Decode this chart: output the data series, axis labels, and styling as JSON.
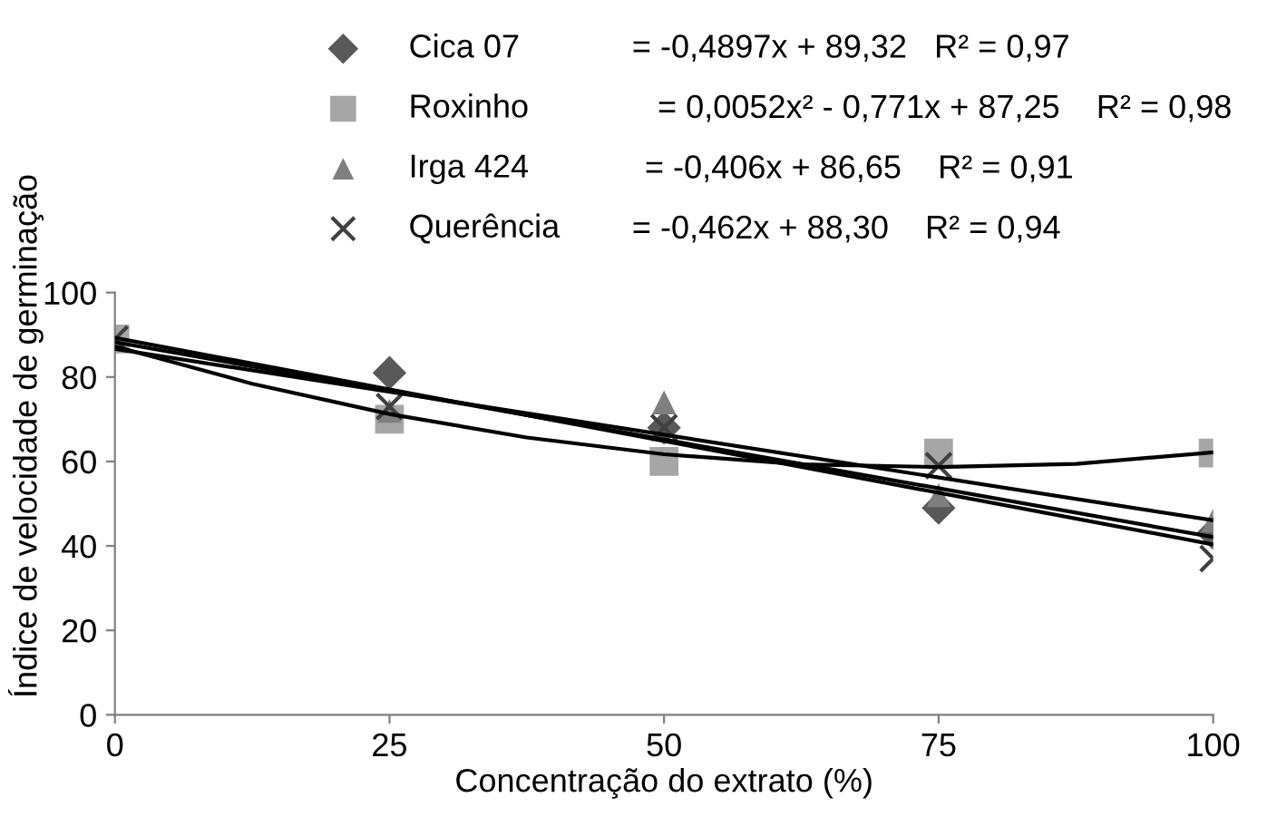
{
  "chart_data": {
    "type": "scatter",
    "xlabel": "Concentração do extrato (%)",
    "ylabel": "Índice de velocidade de germinação",
    "x": [
      0,
      25,
      50,
      75,
      100
    ],
    "series": [
      {
        "name": "Cica 07",
        "color": "#595959",
        "marker": "diamond",
        "values": [
          null,
          81,
          68,
          49,
          43
        ]
      },
      {
        "name": "Roxinho",
        "color": "#a6a6a6",
        "marker": "square",
        "values": [
          89,
          70,
          60,
          62,
          62
        ]
      },
      {
        "name": "Irga 424",
        "color": "#7f7f7f",
        "marker": "triangle",
        "values": [
          null,
          72,
          74,
          52,
          46
        ]
      },
      {
        "name": "Querência",
        "color": "#404040",
        "marker": "cross",
        "values": [
          89,
          73,
          68,
          59,
          37
        ]
      },
      {
        "type": "line",
        "color": "#000000",
        "x": [
          0,
          100
        ],
        "values": [
          89.32,
          40.35
        ]
      },
      {
        "type": "line",
        "color": "#000000",
        "x": [
          0,
          12.5,
          25,
          37.5,
          50,
          62.5,
          75,
          87.5,
          100
        ],
        "values": [
          87.25,
          78.42,
          71.23,
          65.68,
          61.7,
          59.32,
          58.68,
          59.43,
          62.15
        ]
      },
      {
        "type": "line",
        "color": "#000000",
        "x": [
          0,
          100
        ],
        "values": [
          86.65,
          46.05
        ]
      },
      {
        "type": "line",
        "color": "#000000",
        "x": [
          0,
          100
        ],
        "values": [
          88.3,
          42.1
        ]
      }
    ],
    "annotations": [
      "= -0,4897x + 89,32   R² = 0,97",
      "= 0,0052x² - 0,771x + 87,25    R² = 0,98",
      "= -0,406x + 86,65    R² = 0,91",
      "= -0,462x + 88,30    R² = 0,94"
    ],
    "xlim": [
      0,
      100
    ],
    "xticks": [
      0,
      25,
      50,
      75,
      100
    ],
    "ylim": [
      0,
      100
    ],
    "yticks": [
      0,
      20,
      40,
      60,
      80,
      100
    ],
    "grid": false,
    "legend": "top"
  }
}
